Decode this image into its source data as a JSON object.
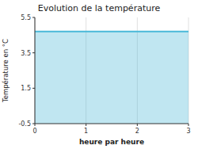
{
  "chart_data": {
    "type": "area",
    "title": "Evolution de la température",
    "xlabel": "heure par heure",
    "ylabel": "Température en °C",
    "x": [
      0,
      3
    ],
    "values": [
      4.7,
      4.7
    ],
    "color": "#4ab8d8",
    "xlim": [
      0,
      3
    ],
    "ylim": [
      -0.5,
      5.5
    ],
    "xticks": [
      0,
      1,
      2,
      3
    ],
    "yticks": [
      -0.5,
      1.5,
      3.5,
      5.5
    ],
    "grid": "x"
  }
}
